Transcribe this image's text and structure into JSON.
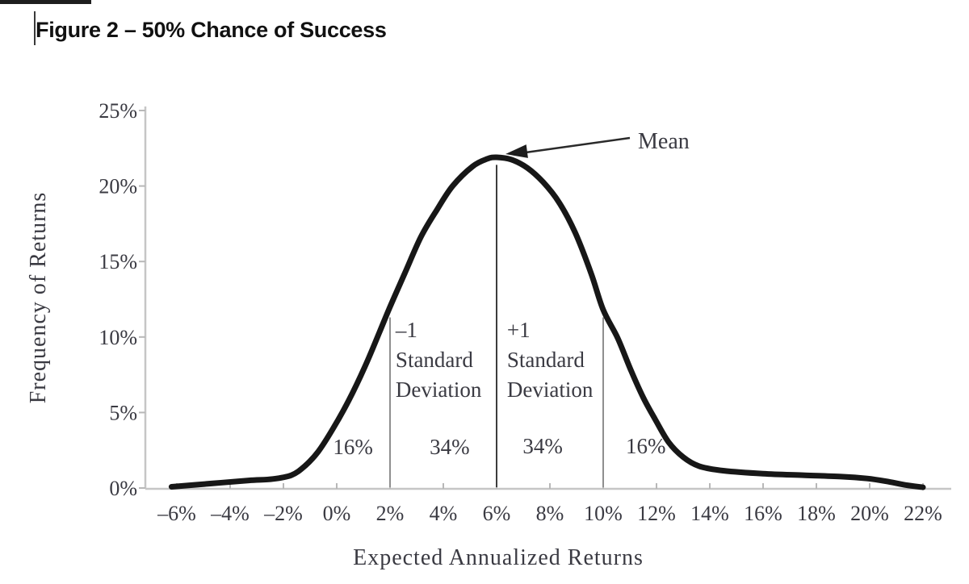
{
  "chart_data": {
    "type": "line",
    "title": "Figure 2 – 50% Chance of Success",
    "xlabel": "Expected Annualized Returns",
    "ylabel": "Frequency of Returns",
    "xlim": [
      -7,
      23
    ],
    "ylim": [
      0,
      25
    ],
    "grid": false,
    "legend": null,
    "x_ticks": [
      {
        "value": -6,
        "label": "–6%"
      },
      {
        "value": -4,
        "label": "–4%"
      },
      {
        "value": -2,
        "label": "–2%"
      },
      {
        "value": 0,
        "label": "0%"
      },
      {
        "value": 2,
        "label": "2%"
      },
      {
        "value": 4,
        "label": "4%"
      },
      {
        "value": 6,
        "label": "6%"
      },
      {
        "value": 8,
        "label": "8%"
      },
      {
        "value": 10,
        "label": "10%"
      },
      {
        "value": 12,
        "label": "12%"
      },
      {
        "value": 14,
        "label": "14%"
      },
      {
        "value": 16,
        "label": "16%"
      },
      {
        "value": 18,
        "label": "18%"
      },
      {
        "value": 20,
        "label": "20%"
      },
      {
        "value": 22,
        "label": "22%"
      }
    ],
    "y_ticks": [
      {
        "value": 0,
        "label": "0%"
      },
      {
        "value": 5,
        "label": "5%"
      },
      {
        "value": 10,
        "label": "10%"
      },
      {
        "value": 15,
        "label": "15%"
      },
      {
        "value": 20,
        "label": "20%"
      },
      {
        "value": 25,
        "label": "25%"
      }
    ],
    "distribution": {
      "mean_pct": 6,
      "std_dev_pct": 4,
      "peak_frequency_pct": 21.9,
      "minus_1sd_pct": 2,
      "plus_1sd_pct": 10
    },
    "series": [
      {
        "name": "expected-returns-distribution",
        "points": [
          [
            -6.2,
            0.08
          ],
          [
            -4.7,
            0.3
          ],
          [
            -3.3,
            0.5
          ],
          [
            -2.4,
            0.6
          ],
          [
            -1.7,
            0.85
          ],
          [
            -1.2,
            1.45
          ],
          [
            -0.7,
            2.4
          ],
          [
            -0.15,
            3.9
          ],
          [
            0.45,
            5.8
          ],
          [
            1.05,
            8.0
          ],
          [
            1.6,
            10.3
          ],
          [
            2.0,
            12.0
          ],
          [
            2.55,
            14.2
          ],
          [
            3.15,
            16.6
          ],
          [
            3.75,
            18.4
          ],
          [
            4.35,
            20.0
          ],
          [
            5.1,
            21.3
          ],
          [
            5.65,
            21.8
          ],
          [
            6.0,
            21.9
          ],
          [
            6.55,
            21.75
          ],
          [
            7.15,
            21.2
          ],
          [
            7.75,
            20.25
          ],
          [
            8.35,
            18.9
          ],
          [
            8.95,
            16.9
          ],
          [
            9.55,
            14.2
          ],
          [
            10.0,
            11.8
          ],
          [
            10.55,
            9.9
          ],
          [
            11.05,
            7.75
          ],
          [
            11.5,
            6.0
          ],
          [
            11.95,
            4.55
          ],
          [
            12.45,
            3.05
          ],
          [
            13.0,
            2.05
          ],
          [
            13.6,
            1.45
          ],
          [
            14.5,
            1.15
          ],
          [
            16.0,
            0.95
          ],
          [
            17.5,
            0.85
          ],
          [
            19.0,
            0.75
          ],
          [
            19.9,
            0.63
          ],
          [
            20.6,
            0.45
          ],
          [
            21.35,
            0.2
          ],
          [
            22.0,
            0.05
          ]
        ]
      }
    ],
    "reference_lines": [
      {
        "name": "mean-line",
        "x": 6,
        "top_f": 21.4
      },
      {
        "name": "minus-1sd-line",
        "x": 2,
        "top_f": 11.3
      },
      {
        "name": "plus-1sd-line",
        "x": 10,
        "top_f": 11.3
      }
    ],
    "annotations": {
      "mean_label": "Mean",
      "sd_left": {
        "lines": [
          "–1",
          "Standard",
          "Deviation"
        ],
        "anchor_x": 2.21,
        "anchor_top_f": 10.0
      },
      "sd_right": {
        "lines": [
          "+1",
          "Standard",
          "Deviation"
        ],
        "anchor_x": 6.39,
        "anchor_top_f": 10.0
      },
      "area_labels": [
        {
          "text": "16%",
          "x": 0.61,
          "f": 2.25
        },
        {
          "text": "34%",
          "x": 4.24,
          "f": 2.25
        },
        {
          "text": "34%",
          "x": 7.73,
          "f": 2.3
        },
        {
          "text": "16%",
          "x": 11.6,
          "f": 2.3
        }
      ]
    }
  }
}
